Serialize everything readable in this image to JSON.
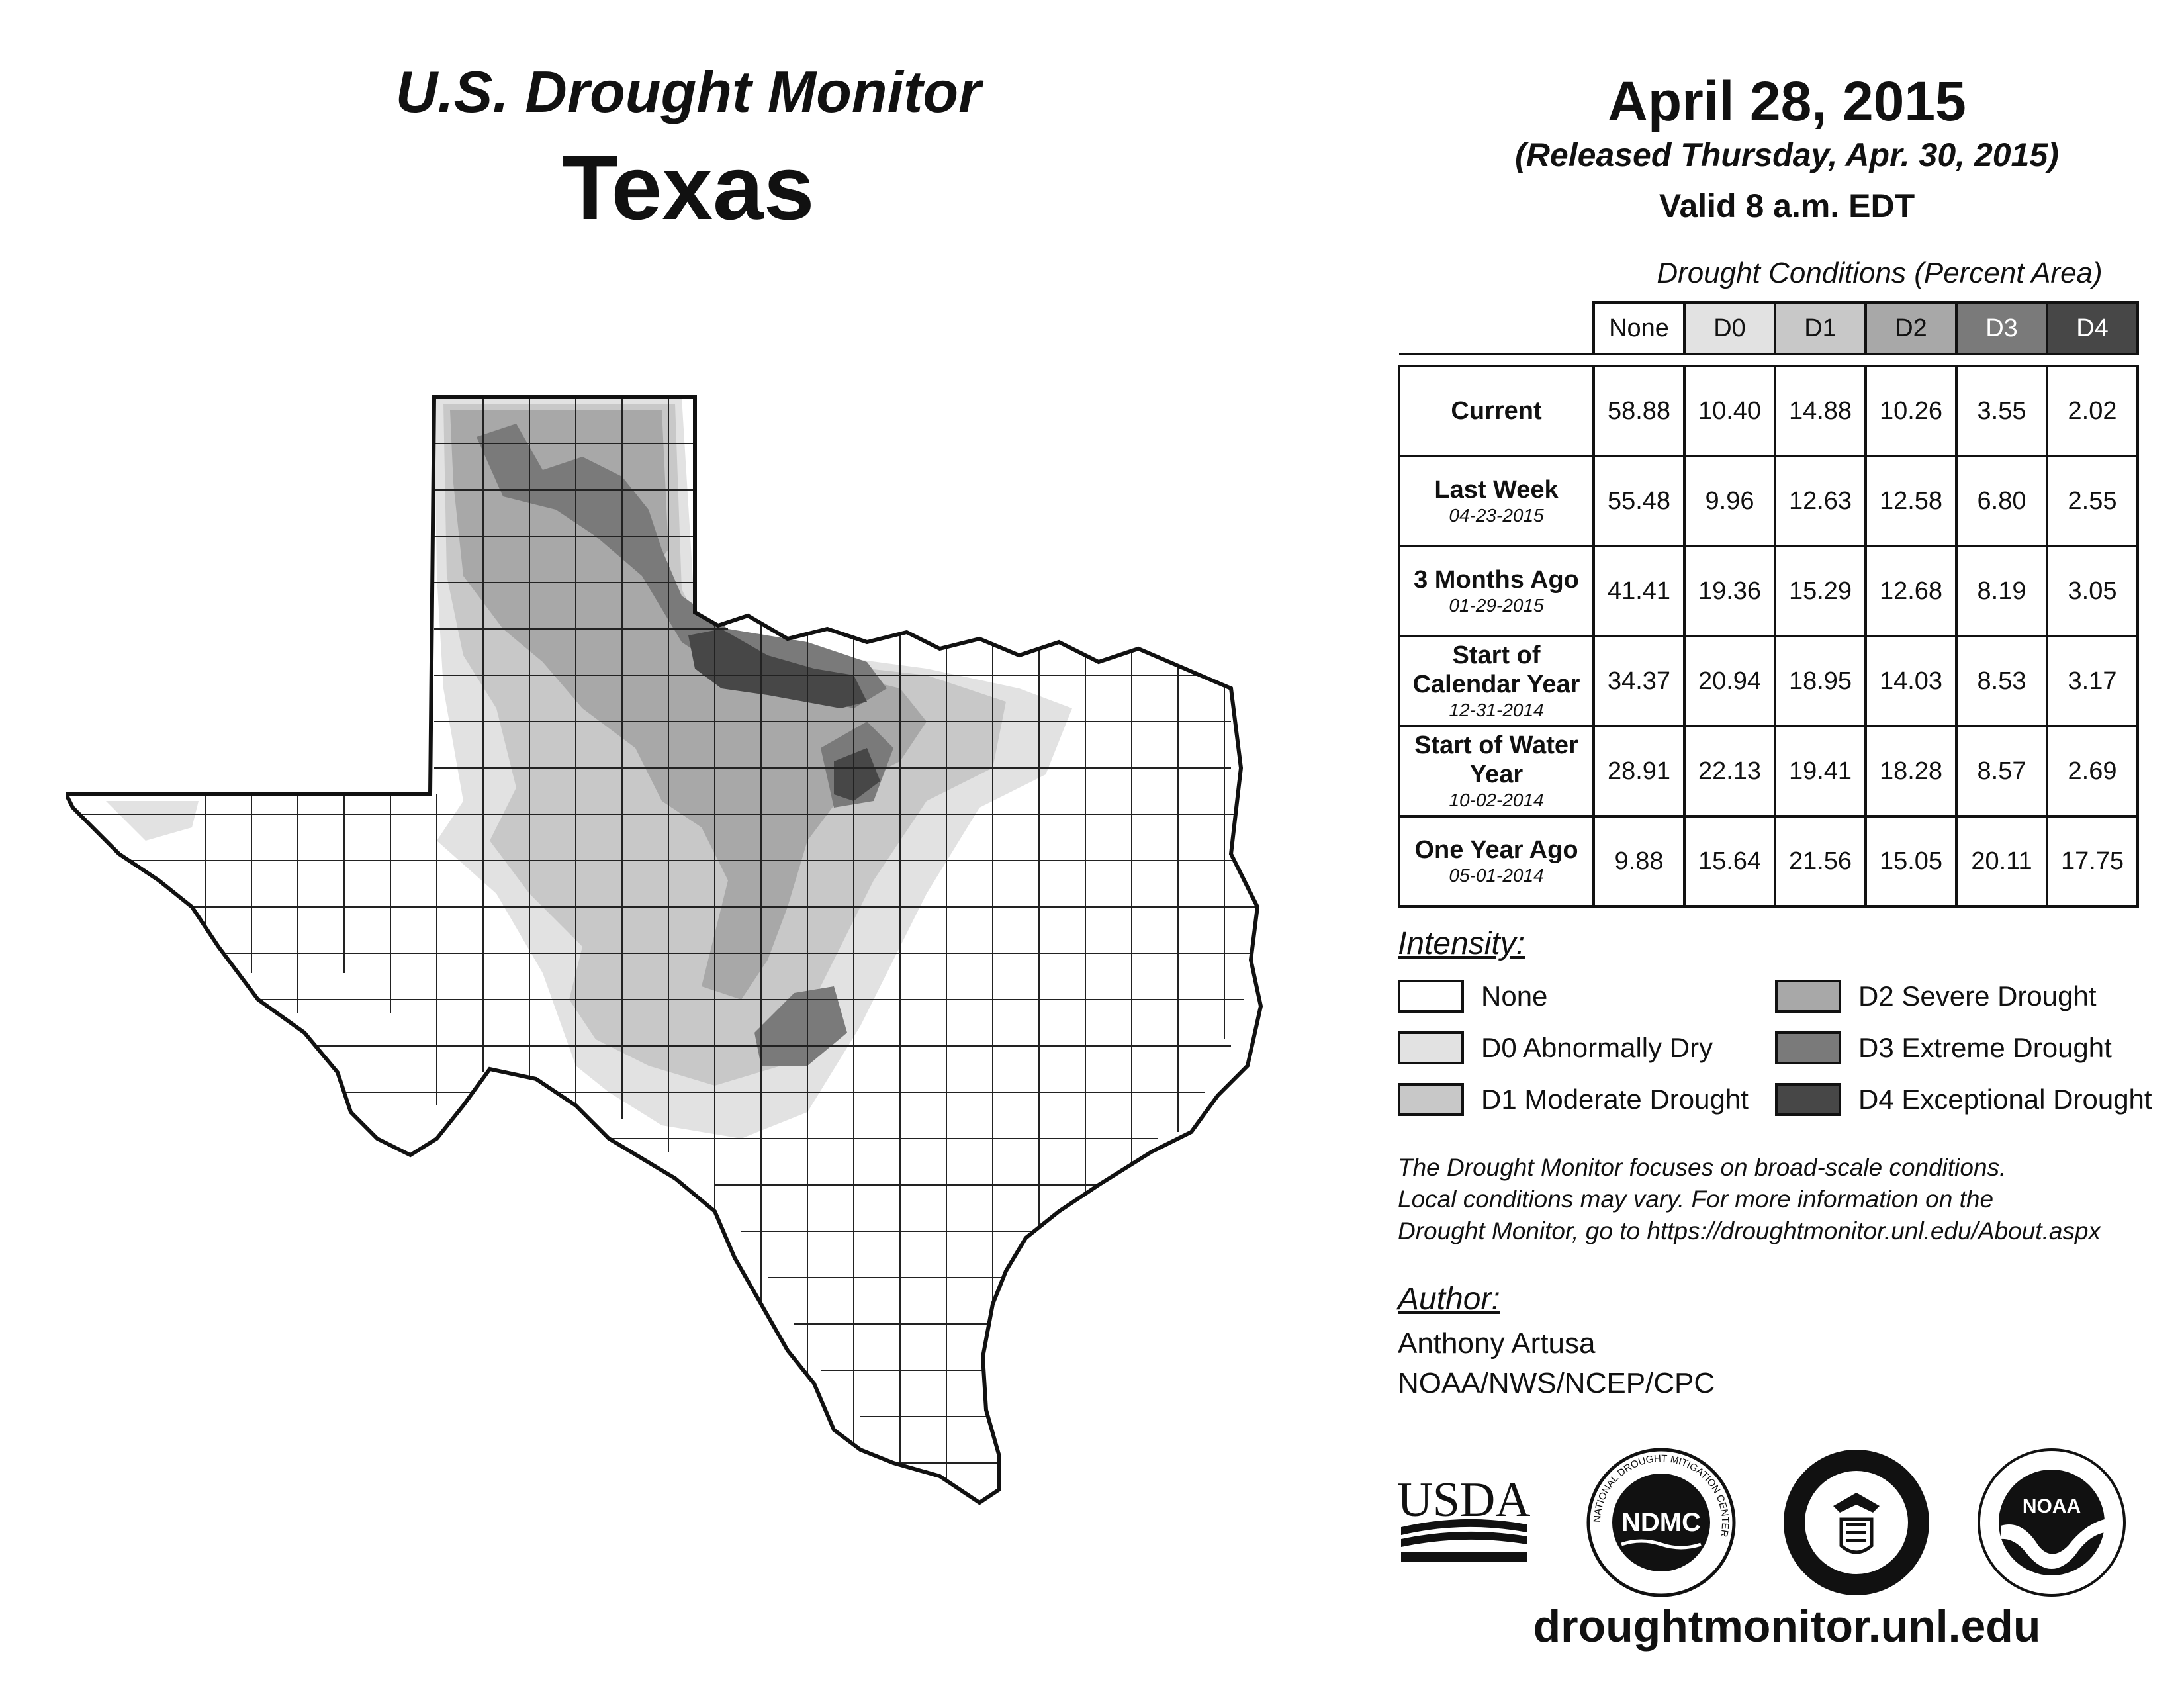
{
  "header": {
    "product": "U.S. Drought Monitor",
    "state": "Texas",
    "date": "April 28, 2015",
    "released": "(Released Thursday, Apr. 30, 2015)",
    "valid": "Valid 8 a.m. EDT"
  },
  "table": {
    "caption": "Drought Conditions (Percent Area)",
    "columns": [
      "None",
      "D0",
      "D1",
      "D2",
      "D3",
      "D4"
    ],
    "rows": [
      {
        "label": "Current",
        "date": "",
        "values": [
          "58.88",
          "10.40",
          "14.88",
          "10.26",
          "3.55",
          "2.02"
        ]
      },
      {
        "label": "Last Week",
        "date": "04-23-2015",
        "values": [
          "55.48",
          "9.96",
          "12.63",
          "12.58",
          "6.80",
          "2.55"
        ]
      },
      {
        "label": "3 Months Ago",
        "date": "01-29-2015",
        "values": [
          "41.41",
          "19.36",
          "15.29",
          "12.68",
          "8.19",
          "3.05"
        ]
      },
      {
        "label": "Start of Calendar Year",
        "date": "12-31-2014",
        "values": [
          "34.37",
          "20.94",
          "18.95",
          "14.03",
          "8.53",
          "3.17"
        ]
      },
      {
        "label": "Start of Water Year",
        "date": "10-02-2014",
        "values": [
          "28.91",
          "22.13",
          "19.41",
          "18.28",
          "8.57",
          "2.69"
        ]
      },
      {
        "label": "One Year Ago",
        "date": "05-01-2014",
        "values": [
          "9.88",
          "15.64",
          "21.56",
          "15.05",
          "20.11",
          "17.75"
        ]
      }
    ]
  },
  "legend": {
    "title": "Intensity:",
    "items": [
      {
        "label": "None",
        "color": "#ffffff"
      },
      {
        "label": "D0 Abnormally Dry",
        "color": "#e2e2e2"
      },
      {
        "label": "D1 Moderate Drought",
        "color": "#c8c8c8"
      },
      {
        "label": "D2 Severe Drought",
        "color": "#a8a8a8"
      },
      {
        "label": "D3 Extreme Drought",
        "color": "#7a7a7a"
      },
      {
        "label": "D4 Exceptional Drought",
        "color": "#474747"
      }
    ]
  },
  "note": {
    "line1": "The Drought Monitor focuses on broad-scale conditions.",
    "line2": "Local conditions may vary. For more information on the",
    "line3": "Drought Monitor, go to https://droughtmonitor.unl.edu/About.aspx"
  },
  "author": {
    "title": "Author:",
    "name": "Anthony Artusa",
    "org": "NOAA/NWS/NCEP/CPC"
  },
  "logos": {
    "usda": "USDA",
    "ndmc": "NDMC",
    "ndmc_ring": "NATIONAL DROUGHT MITIGATION CENTER",
    "noaa": "NOAA"
  },
  "footer": {
    "url": "droughtmonitor.unl.edu"
  },
  "colors": {
    "none": "#ffffff",
    "d0": "#e2e2e2",
    "d1": "#c8c8c8",
    "d2": "#a8a8a8",
    "d3": "#7a7a7a",
    "d4": "#474747"
  }
}
